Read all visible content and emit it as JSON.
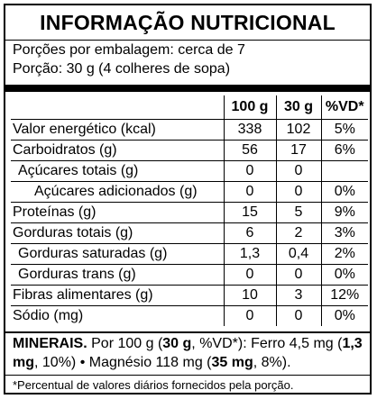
{
  "title": "INFORMAÇÃO NUTRICIONAL",
  "servings_per_package": "Porções por embalagem: cerca de 7",
  "serving_size": "Porção: 30 g (4 colheres de sopa)",
  "columns": [
    "100 g",
    "30 g",
    "%VD*"
  ],
  "rows": [
    {
      "name": "Valor energético (kcal)",
      "v100": "338",
      "v30": "102",
      "vd": "5%"
    },
    {
      "name": "Carboidratos (g)",
      "v100": "56",
      "v30": "17",
      "vd": "6%"
    },
    {
      "name": "Açúcares totais (g)",
      "v100": "0",
      "v30": "0",
      "vd": ""
    },
    {
      "name": "Açúcares adicionados (g)",
      "v100": "0",
      "v30": "0",
      "vd": "0%"
    },
    {
      "name": "Proteínas (g)",
      "v100": "15",
      "v30": "5",
      "vd": "9%"
    },
    {
      "name": "Gorduras totais (g)",
      "v100": "6",
      "v30": "2",
      "vd": "3%"
    },
    {
      "name": "Gorduras saturadas (g)",
      "v100": "1,3",
      "v30": "0,4",
      "vd": "2%"
    },
    {
      "name": "Gorduras trans (g)",
      "v100": "0",
      "v30": "0",
      "vd": "0%"
    },
    {
      "name": "Fibras alimentares (g)",
      "v100": "10",
      "v30": "3",
      "vd": "12%"
    },
    {
      "name": "Sódio (mg)",
      "v100": "0",
      "v30": "0",
      "vd": "0%"
    }
  ],
  "minerals": {
    "heading": "MINERAIS.",
    "t1": " Por 100 g (",
    "b1": "30 g",
    "t2": ", %VD*): Ferro 4,5 mg (",
    "b2": "1,3 mg",
    "t3": ", 10%) • Magnésio 118 mg (",
    "b3": "35 mg",
    "t4": ", 8%)."
  },
  "footnote": "*Percentual de valores diários fornecidos pela porção."
}
